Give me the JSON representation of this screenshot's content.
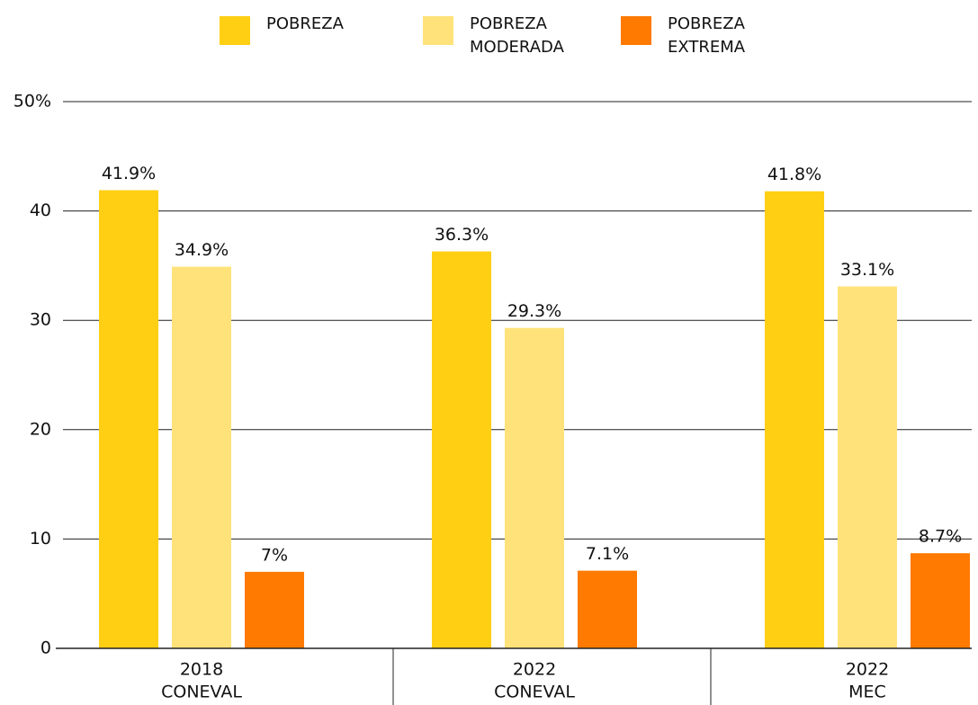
{
  "chart_data": {
    "type": "bar",
    "categories": [
      [
        "2018",
        "CONEVAL"
      ],
      [
        "2022",
        "CONEVAL"
      ],
      [
        "2022",
        "MEC"
      ]
    ],
    "series": [
      {
        "name": "POBREZA",
        "color": "#ffcf14",
        "values": [
          41.9,
          36.3,
          41.8
        ],
        "value_labels": [
          "41.9%",
          "36.3%",
          "41.8%"
        ]
      },
      {
        "name": "POBREZA MODERADA",
        "color": "#ffe27a",
        "values": [
          34.9,
          29.3,
          33.1
        ],
        "value_labels": [
          "34.9%",
          "29.3%",
          "33.1%"
        ]
      },
      {
        "name": "POBREZA EXTREMA",
        "color": "#ff7a00",
        "values": [
          7,
          7.1,
          8.7
        ],
        "value_labels": [
          "7%",
          "7.1%",
          "8.7%"
        ]
      }
    ],
    "ylim": [
      0,
      50
    ],
    "yticks": [
      0,
      10,
      20,
      30,
      40,
      {
        "value": 50,
        "label": "50%"
      }
    ],
    "grid": true
  }
}
